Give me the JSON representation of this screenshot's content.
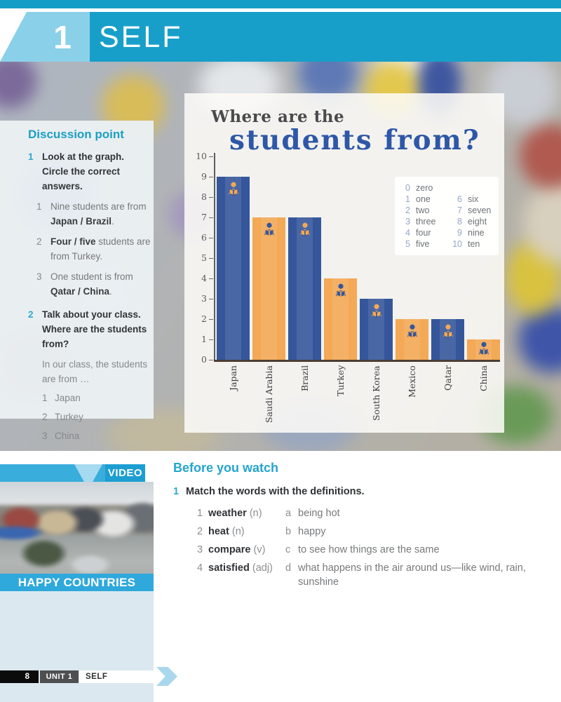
{
  "header": {
    "unit_number": "1",
    "unit_title": "SELF"
  },
  "discussion": {
    "heading": "Discussion point",
    "item1": {
      "num": "1",
      "text": "Look at the graph. Circle the correct answers.",
      "subs": [
        {
          "num": "1",
          "pre": "Nine students are from ",
          "bold": "Japan / Brazil",
          "post": "."
        },
        {
          "num": "2",
          "pre": "",
          "bold": "Four / five",
          "post": " students are from Turkey."
        },
        {
          "num": "3",
          "pre": "One student is from ",
          "bold": "Qatar / China",
          "post": "."
        }
      ]
    },
    "item2": {
      "num": "2",
      "text": "Talk about your class. Where are the students from?",
      "lead": "In our class, the students are from …",
      "list": [
        {
          "num": "1",
          "label": "Japan"
        },
        {
          "num": "2",
          "label": "Turkey"
        },
        {
          "num": "3",
          "label": "China"
        }
      ]
    }
  },
  "chart_data": {
    "type": "bar",
    "title_line1": "Where are the",
    "title_line2": "students from?",
    "categories": [
      "Japan",
      "Saudi Arabia",
      "Brazil",
      "Turkey",
      "South Korea",
      "Mexico",
      "Qatar",
      "China"
    ],
    "values": [
      9,
      7,
      7,
      4,
      3,
      2,
      2,
      1
    ],
    "ylabel": "",
    "xlabel": "",
    "ylim": [
      0,
      10
    ],
    "yticks": [
      "0",
      "1",
      "2",
      "3",
      "4",
      "5",
      "6",
      "7",
      "8",
      "9",
      "10"
    ],
    "grid": false,
    "bar_color_odd": "#35569B",
    "bar_color_even": "#F3A955",
    "icon": "student-reading-icon",
    "legend_position": "upper-right",
    "legend_col1": [
      {
        "num": "0",
        "word": "zero"
      },
      {
        "num": "1",
        "word": "one"
      },
      {
        "num": "2",
        "word": "two"
      },
      {
        "num": "3",
        "word": "three"
      },
      {
        "num": "4",
        "word": "four"
      },
      {
        "num": "5",
        "word": "five"
      }
    ],
    "legend_col2": [
      {
        "num": "",
        "word": ""
      },
      {
        "num": "6",
        "word": "six"
      },
      {
        "num": "7",
        "word": "seven"
      },
      {
        "num": "8",
        "word": "eight"
      },
      {
        "num": "9",
        "word": "nine"
      },
      {
        "num": "10",
        "word": "ten"
      }
    ]
  },
  "video": {
    "badge": "VIDEO",
    "caption": "HAPPY COUNTRIES"
  },
  "before_watch": {
    "heading": "Before you watch",
    "exercise_num": "1",
    "instruction": "Match the words with the definitions.",
    "pairs": [
      {
        "num": "1",
        "word": "weather",
        "pos": "(n)",
        "letter": "a",
        "definition": "being hot"
      },
      {
        "num": "2",
        "word": "heat",
        "pos": "(n)",
        "letter": "b",
        "definition": "happy"
      },
      {
        "num": "3",
        "word": "compare",
        "pos": "(v)",
        "letter": "c",
        "definition": "to see how things are the same"
      },
      {
        "num": "4",
        "word": "satisfied",
        "pos": "(adj)",
        "letter": "d",
        "definition": "what happens in the air around us—like wind, rain, sunshine"
      }
    ]
  },
  "footer": {
    "page_number": "8",
    "unit_label": "UNIT 1",
    "unit_title": "SELF"
  },
  "colors": {
    "accent_cyan": "#1AA3CC",
    "ribbon_light_blue": "#8BD0E9",
    "bar_blue": "#35569B",
    "bar_orange": "#F3A955",
    "title_blue": "#2E57A7",
    "baseline_brown": "#4A3E35"
  }
}
